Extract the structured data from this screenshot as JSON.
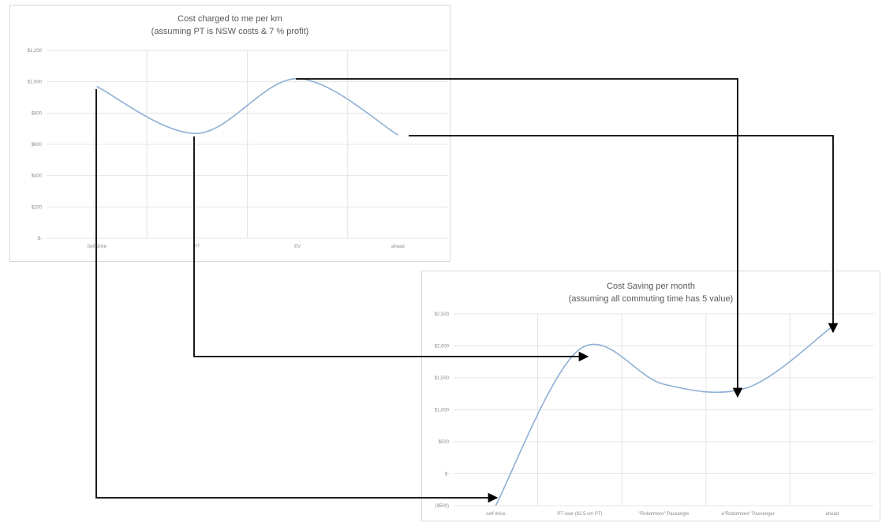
{
  "colors": {
    "series": "#8fb0d6",
    "arrow": "#000000",
    "grid": "#e4e4e4"
  },
  "chart_data": [
    {
      "type": "line",
      "title": "Cost charged to me per km",
      "subtitle": "(assuming PT is NSW costs & 7 % profit)",
      "xlabel": "",
      "ylabel": "",
      "categories": [
        "Self drive",
        "PT",
        "EV",
        "ahead"
      ],
      "series": [
        {
          "values": [
            0.97,
            0.67,
            1.02,
            0.66
          ]
        }
      ],
      "ylim": [
        0,
        1.2
      ],
      "yticks": [
        0,
        0.2,
        0.4,
        0.6,
        0.8,
        1.0,
        1.2
      ],
      "ytick_labels": [
        "$-",
        "$200",
        "$400",
        "$600",
        "$800",
        "$1,000",
        "$1,200"
      ],
      "grid": true,
      "smooth": true,
      "legend": "none"
    },
    {
      "type": "line",
      "title": "Cost Saving per month",
      "subtitle": "(assuming all commuting time has 5 value)",
      "xlabel": "",
      "ylabel": "",
      "categories": [
        "self drive",
        "PT user (62.5 cm PT)",
        "\"Robotmore\" Passengle",
        "a\"Robotmore\" Passenger",
        "ahead"
      ],
      "series": [
        {
          "values": [
            -500,
            1950,
            1400,
            1350,
            2300
          ]
        }
      ],
      "ylim": [
        -500,
        2500
      ],
      "yticks": [
        -500,
        0,
        500,
        1000,
        1500,
        2000,
        2500
      ],
      "ytick_labels": [
        "($500)",
        "$-",
        "$500",
        "$1,000",
        "$1,500",
        "$2,000",
        "$2,500"
      ],
      "grid": true,
      "smooth": true,
      "legend": "none"
    }
  ]
}
